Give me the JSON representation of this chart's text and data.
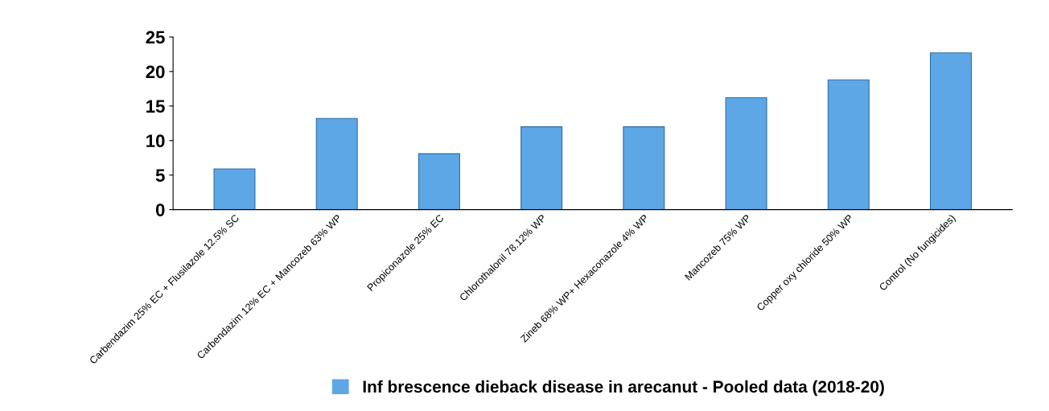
{
  "chart_data": {
    "type": "bar",
    "categories": [
      "Carbendazim 25% EC + Flusilazole 12.5% SC",
      "Carbendazim 12% EC + Mancozeb 63% WP",
      "Propiconazole 25% EC",
      "Chlorothalonil 78.12% WP",
      "Zineb 68% WP+ Hexaconazole 4% WP",
      "Mancozeb 75% WP",
      "Copper oxy chloride 50% WP",
      "Control (No fungicides)"
    ],
    "series": [
      {
        "name": "Inf brescence dieback disease in arecanut - Pooled data (2018-20)",
        "color": "#5ea7e6",
        "values": [
          5.9,
          13.2,
          8.1,
          12.0,
          12.0,
          16.2,
          18.8,
          22.7
        ]
      }
    ],
    "ylim": [
      0,
      25
    ],
    "yticks": [
      0,
      5,
      10,
      15,
      20,
      25
    ],
    "grid": false,
    "legend": "bottom"
  }
}
